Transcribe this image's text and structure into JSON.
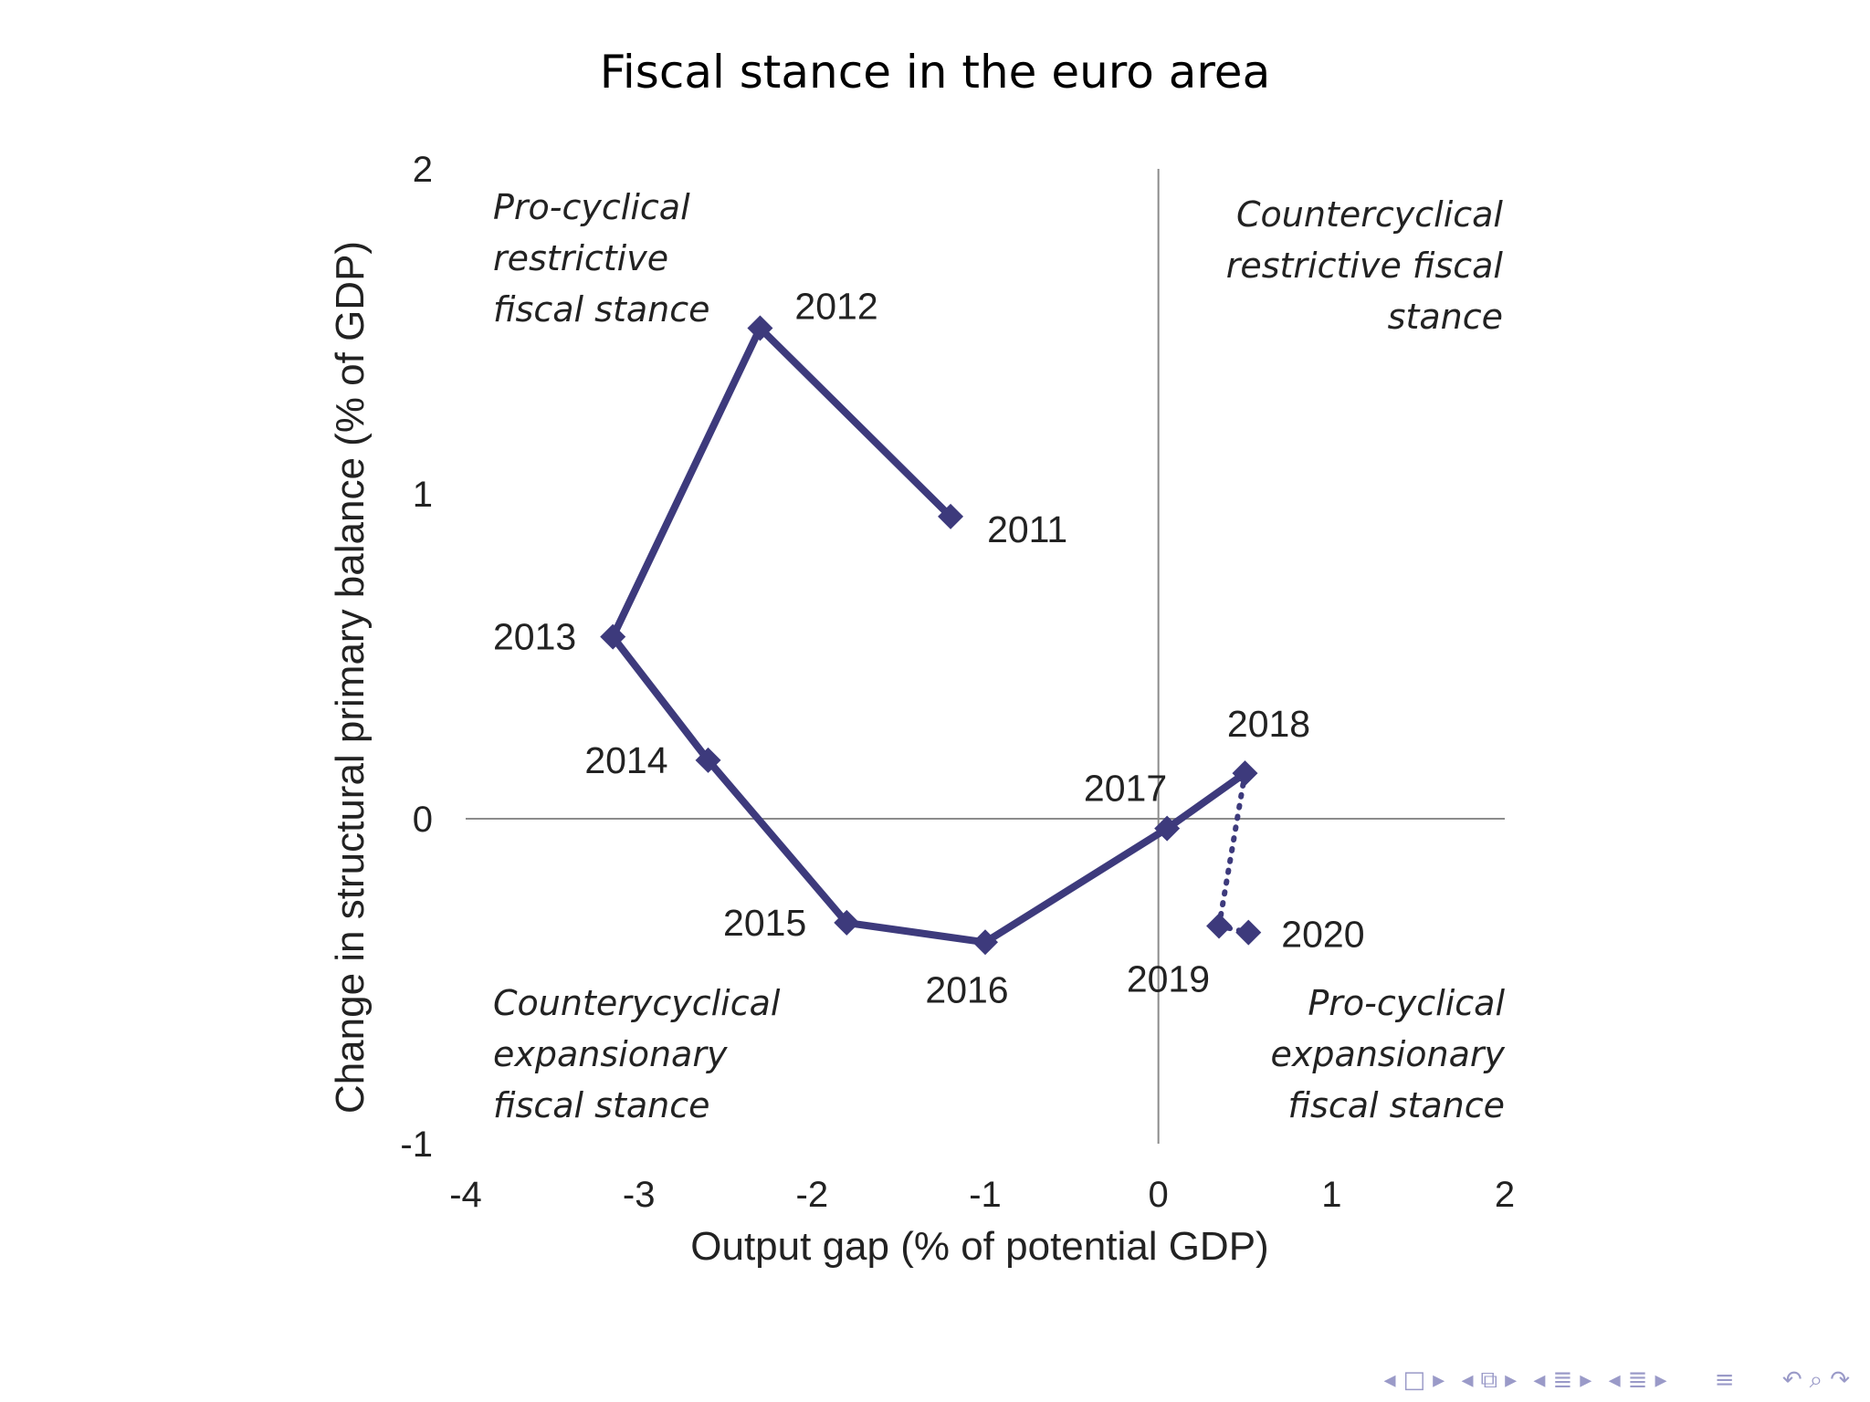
{
  "slide": {
    "title": "Fiscal stance in the euro area"
  },
  "chart_data": {
    "type": "line",
    "xlabel": "Output gap (% of potential GDP)",
    "ylabel": "Change in structural primary balance (% of GDP)",
    "xlim": [
      -4,
      2
    ],
    "ylim": [
      -1,
      2
    ],
    "xticks": [
      "-4",
      "-3",
      "-2",
      "-1",
      "0",
      "1",
      "2"
    ],
    "yticks": [
      "-1",
      "0",
      "1",
      "2"
    ],
    "color": "#3d3a7c",
    "series": [
      {
        "style": "solid",
        "points": [
          {
            "label": "2011",
            "x": -1.2,
            "y": 0.93
          },
          {
            "label": "2012",
            "x": -2.3,
            "y": 1.51
          },
          {
            "label": "2013",
            "x": -3.15,
            "y": 0.56
          },
          {
            "label": "2014",
            "x": -2.6,
            "y": 0.18
          },
          {
            "label": "2015",
            "x": -1.8,
            "y": -0.32
          },
          {
            "label": "2016",
            "x": -1.0,
            "y": -0.38
          },
          {
            "label": "2017",
            "x": 0.05,
            "y": -0.03
          },
          {
            "label": "2018",
            "x": 0.5,
            "y": 0.14
          }
        ]
      },
      {
        "style": "dotted",
        "points": [
          {
            "label": "2018",
            "x": 0.5,
            "y": 0.14
          },
          {
            "label": "2019",
            "x": 0.35,
            "y": -0.33
          },
          {
            "label": "2020",
            "x": 0.52,
            "y": -0.35
          }
        ]
      }
    ],
    "quadrant_labels": {
      "top_left": [
        "Pro-cyclical",
        "restrictive",
        "fiscal stance"
      ],
      "top_right": [
        "Countercyclical",
        "restrictive  fiscal",
        "stance"
      ],
      "bottom_left": [
        "Counterycyclical",
        "expansionary",
        "fiscal stance"
      ],
      "bottom_right": [
        "Pro-cyclical",
        "expansionary",
        "fiscal stance"
      ]
    },
    "grid": false
  },
  "nav": {
    "icons": [
      "prev-arrow",
      "frame-icon",
      "next-arrow",
      "prev-arrow",
      "subsection-icon",
      "next-arrow",
      "prev-arrow",
      "section-icon",
      "next-arrow",
      "prev-arrow",
      "section-icon",
      "next-arrow",
      "align-icon",
      "undo-icon",
      "search-icon",
      "redo-icon"
    ]
  }
}
